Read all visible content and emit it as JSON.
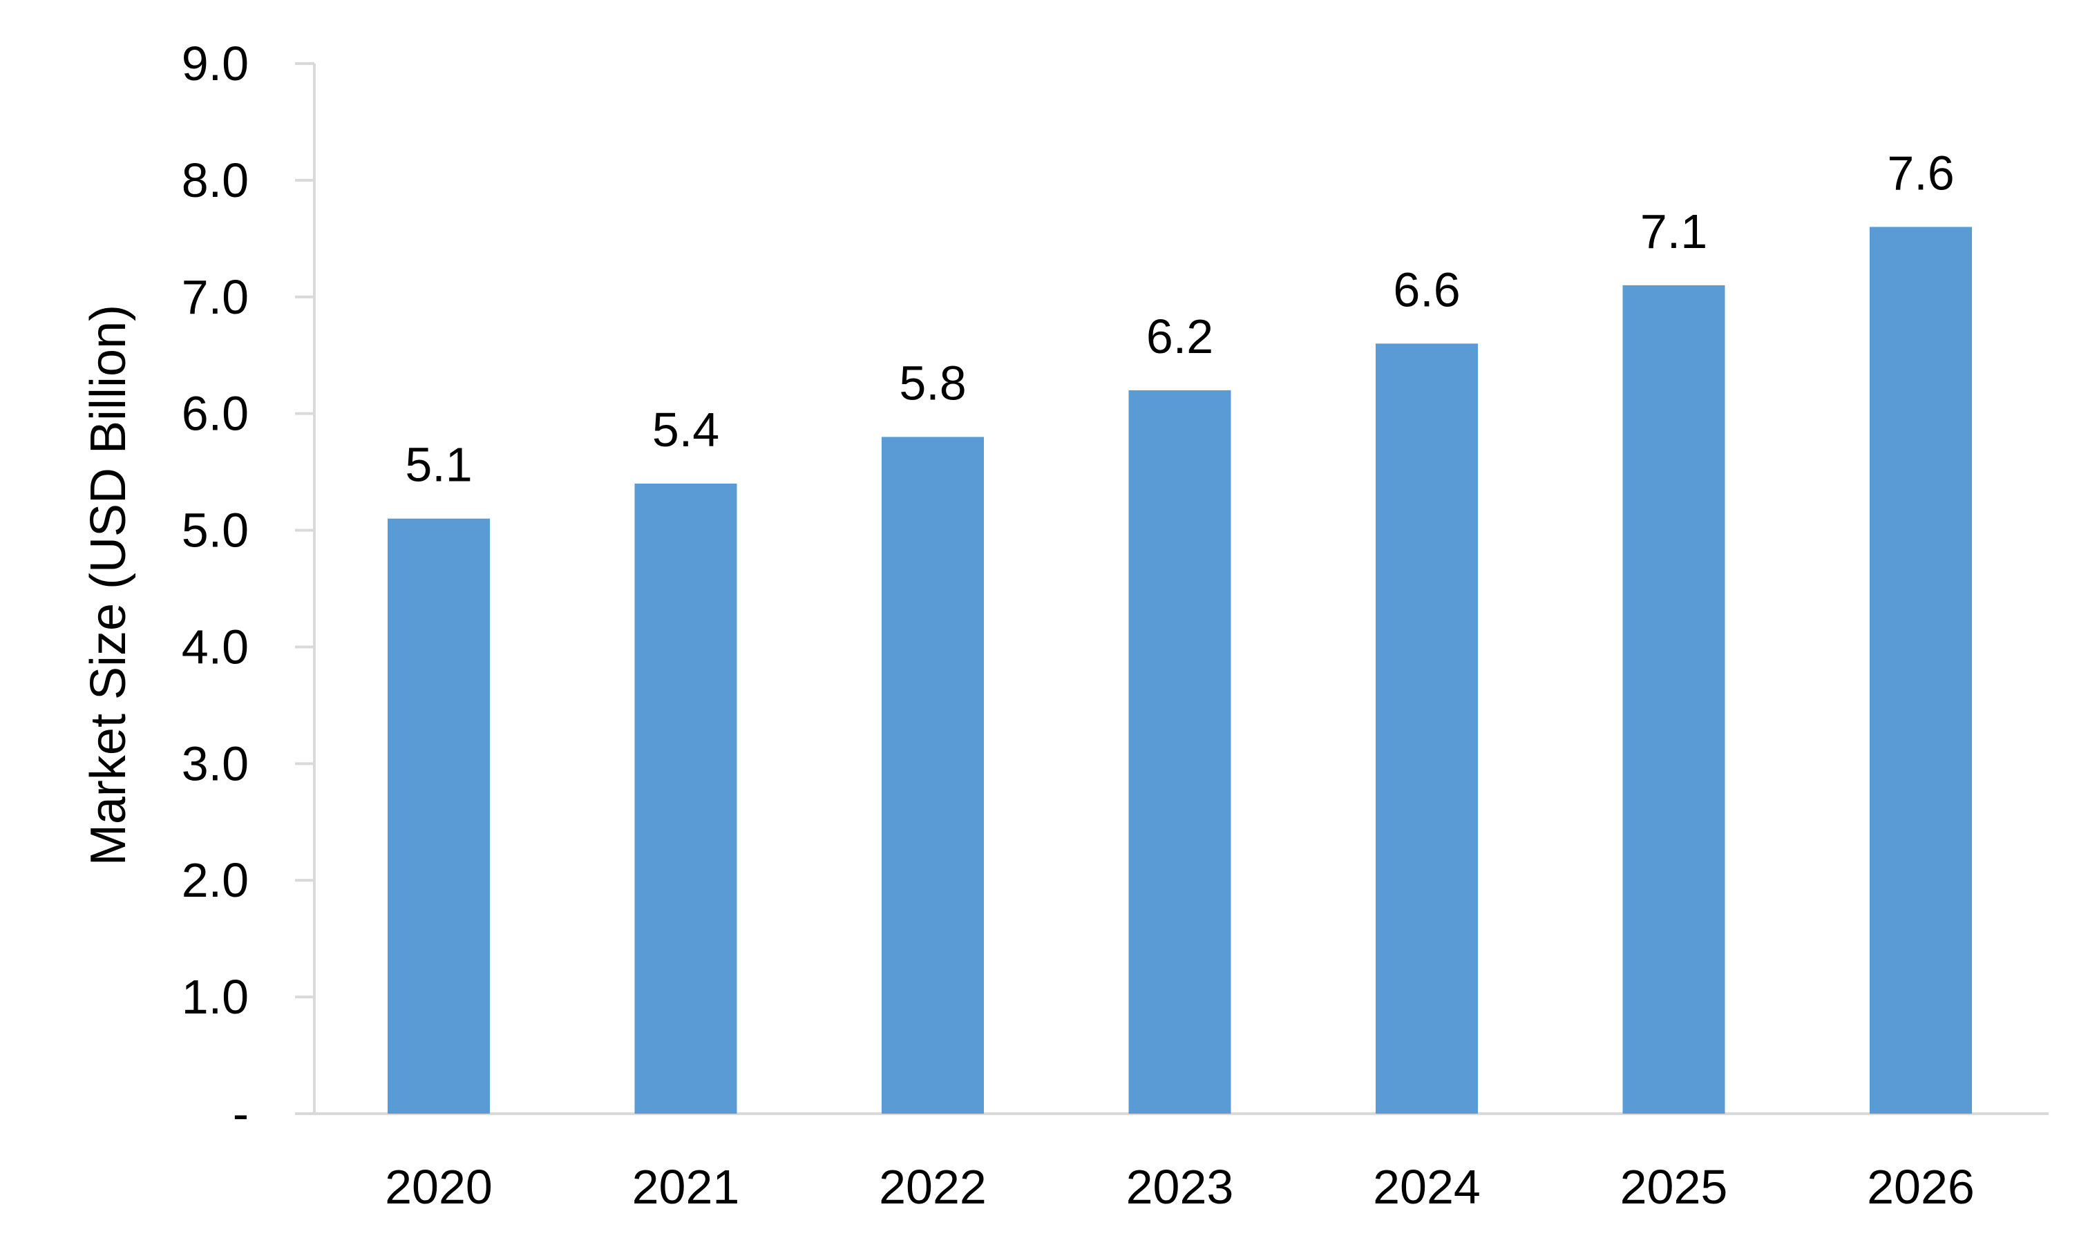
{
  "chart_data": {
    "type": "bar",
    "title": "",
    "xlabel": "",
    "ylabel": "Market Size (USD Billion)",
    "categories": [
      "2020",
      "2021",
      "2022",
      "2023",
      "2024",
      "2025",
      "2026"
    ],
    "values": [
      5.1,
      5.4,
      5.8,
      6.2,
      6.6,
      7.1,
      7.6
    ],
    "data_labels": [
      "5.1",
      "5.4",
      "5.8",
      "6.2",
      "6.6",
      "7.1",
      "7.6"
    ],
    "ylim": [
      0,
      9
    ],
    "y_ticks": [
      0,
      1,
      2,
      3,
      4,
      5,
      6,
      7,
      8,
      9
    ],
    "y_tick_labels": [
      "-",
      "1.0",
      "2.0",
      "3.0",
      "4.0",
      "5.0",
      "6.0",
      "7.0",
      "8.0",
      "9.0"
    ],
    "grid": false,
    "legend": "none",
    "bar_color": "#5B9BD5",
    "axis_color": "#D9D9D9"
  }
}
